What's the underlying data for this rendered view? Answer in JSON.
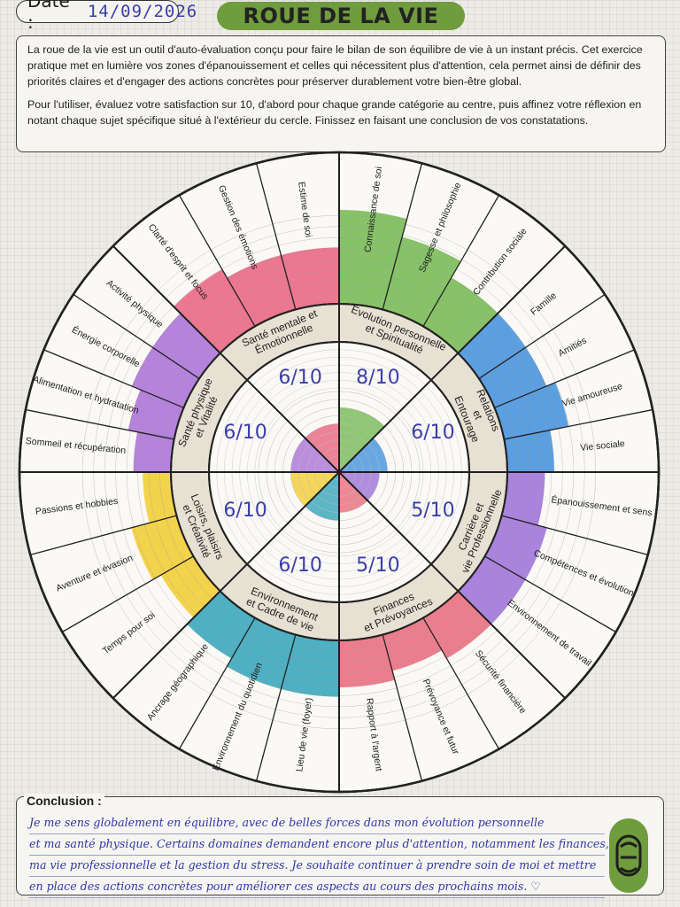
{
  "header": {
    "date_label": "Date :",
    "date_value": "14/09/2026",
    "title": "ROUE DE LA VIE"
  },
  "intro": {
    "paragraph1": "La roue de la vie est un outil d'auto-évaluation conçu pour faire le bilan de son équilibre de vie à un instant précis. Cet exercice pratique met en lumière vos zones d'épanouissement et celles qui nécessitent plus d'attention, cela permet ainsi de définir des priorités claires et d'engager des actions concrètes pour préserver durablement votre bien-être global.",
    "paragraph2": "Pour l'utiliser, évaluez votre satisfaction sur 10, d'abord pour chaque grande catégorie au centre, puis affinez votre réflexion en notant chaque sujet spécifique situé à l'extérieur du cercle. Finissez en faisant une conclusion de vos constatations."
  },
  "wheel": {
    "categories": [
      {
        "name": "Evolution personnelle et Spiritualité",
        "lines": [
          "Evolution personnelle",
          "et Spiritualité"
        ],
        "score": "8/10",
        "value": 8,
        "color": "#72b84f",
        "subtopics": [
          {
            "label": "Connaissance de soi",
            "value": 10
          },
          {
            "label": "Sagesse et philosophie",
            "value": 8
          },
          {
            "label": "Contribution sociale",
            "value": 6
          }
        ]
      },
      {
        "name": "Relations et Entourage",
        "lines": [
          "Relations",
          "et",
          "Entourage"
        ],
        "score": "6/10",
        "value": 6,
        "color": "#3f8fdc",
        "subtopics": [
          {
            "label": "Famille",
            "value": 6
          },
          {
            "label": "Amitiés",
            "value": 6
          },
          {
            "label": "Vie amoureuse",
            "value": 7
          },
          {
            "label": "Vie sociale",
            "value": 5
          }
        ]
      },
      {
        "name": "Carrière et vie Professionnelle",
        "lines": [
          "Carrière et",
          "vie Professionnelle"
        ],
        "score": "5/10",
        "value": 5,
        "color": "#9b6fd8",
        "subtopics": [
          {
            "label": "Épanouissement et sens",
            "value": 4
          },
          {
            "label": "Compétences et évolution",
            "value": 5
          },
          {
            "label": "Environnement de travail",
            "value": 5
          }
        ]
      },
      {
        "name": "Finances et Prévoyances",
        "lines": [
          "Finances",
          "et Prévoyances"
        ],
        "score": "5/10",
        "value": 5,
        "color": "#e8697a",
        "subtopics": [
          {
            "label": "Sécurité financière",
            "value": 5
          },
          {
            "label": "Prévoyance et futur",
            "value": 4
          },
          {
            "label": "Rapport à l'argent",
            "value": 5
          }
        ]
      },
      {
        "name": "Environnement et Cadre de vie",
        "lines": [
          "Environnement",
          "et Cadre de vie"
        ],
        "score": "6/10",
        "value": 6,
        "color": "#2fa3b8",
        "subtopics": [
          {
            "label": "Lieu de vie (foyer)",
            "value": 6
          },
          {
            "label": "Environnement du quotidien",
            "value": 6
          },
          {
            "label": "Ancrage géographique",
            "value": 5
          }
        ]
      },
      {
        "name": "Loisirs, plaisirs et Créativité",
        "lines": [
          "Loisirs, plaisirs",
          "et Créativité"
        ],
        "score": "6/10",
        "value": 6,
        "color": "#f2cc2e",
        "subtopics": [
          {
            "label": "Temps pour soi",
            "value": 4
          },
          {
            "label": "Aventure et évasion",
            "value": 5
          },
          {
            "label": "Passions et hobbies",
            "value": 3
          }
        ]
      },
      {
        "name": "Santé physique et Vitalité",
        "lines": [
          "Santé physique",
          "et Vitalité"
        ],
        "score": "6/10",
        "value": 6,
        "color": "#a86fd6",
        "subtopics": [
          {
            "label": "Sommeil et récupération",
            "value": 4
          },
          {
            "label": "Alimentation et hydratation",
            "value": 5
          },
          {
            "label": "Énergie corporelle",
            "value": 6
          },
          {
            "label": "Activité physique",
            "value": 6
          }
        ]
      },
      {
        "name": "Santé mentale et Émotionnelle",
        "lines": [
          "Santé mentale et",
          "Émotionnelle"
        ],
        "score": "6/10",
        "value": 6,
        "color": "#e8607e",
        "subtopics": [
          {
            "label": "Clarté d'esprit et focus",
            "value": 7
          },
          {
            "label": "Gestion des émotions",
            "value": 6
          },
          {
            "label": "Estime de soi",
            "value": 6
          }
        ]
      }
    ]
  },
  "conclusion": {
    "title": "Conclusion :",
    "lines": [
      "Je me sens globalement en équilibre, avec de belles forces dans mon évolution personnelle",
      "et ma santé physique. Certains domaines demandent encore plus d'attention, notamment les finances,",
      "ma vie professionnelle et la gestion du stress. Je souhaite continuer à prendre soin de moi et mettre",
      "en place des actions concrètes pour améliorer ces aspects au cours des prochains mois."
    ],
    "heart": "♡"
  }
}
